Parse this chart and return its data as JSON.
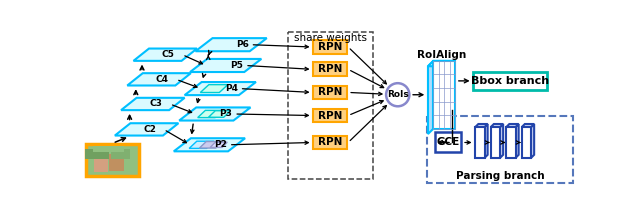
{
  "fig_width": 6.4,
  "fig_height": 2.12,
  "dpi": 100,
  "bg_color": "#ffffff",
  "share_weights_title": "share weights",
  "cyan": "#00BFFF",
  "teal": "#00CED1",
  "orange_fill": "#FFD080",
  "orange_edge": "#FFA500",
  "purple_circle": "#8888CC",
  "blue_grid": "#8899CC",
  "blue_dark": "#2244AA",
  "teal_bbox": "#00BBAA",
  "dashed_parse": "#5577BB",
  "c_labels": [
    "C5",
    "C4",
    "C3",
    "C2"
  ],
  "p_labels": [
    "P6",
    "P5",
    "P4",
    "P3",
    "P2"
  ],
  "rois_label": "RoIs",
  "roialign_label": "RoIAlign",
  "bbox_label": "Bbox branch",
  "gce_label": "GCE",
  "parsing_label": "Parsing branch"
}
